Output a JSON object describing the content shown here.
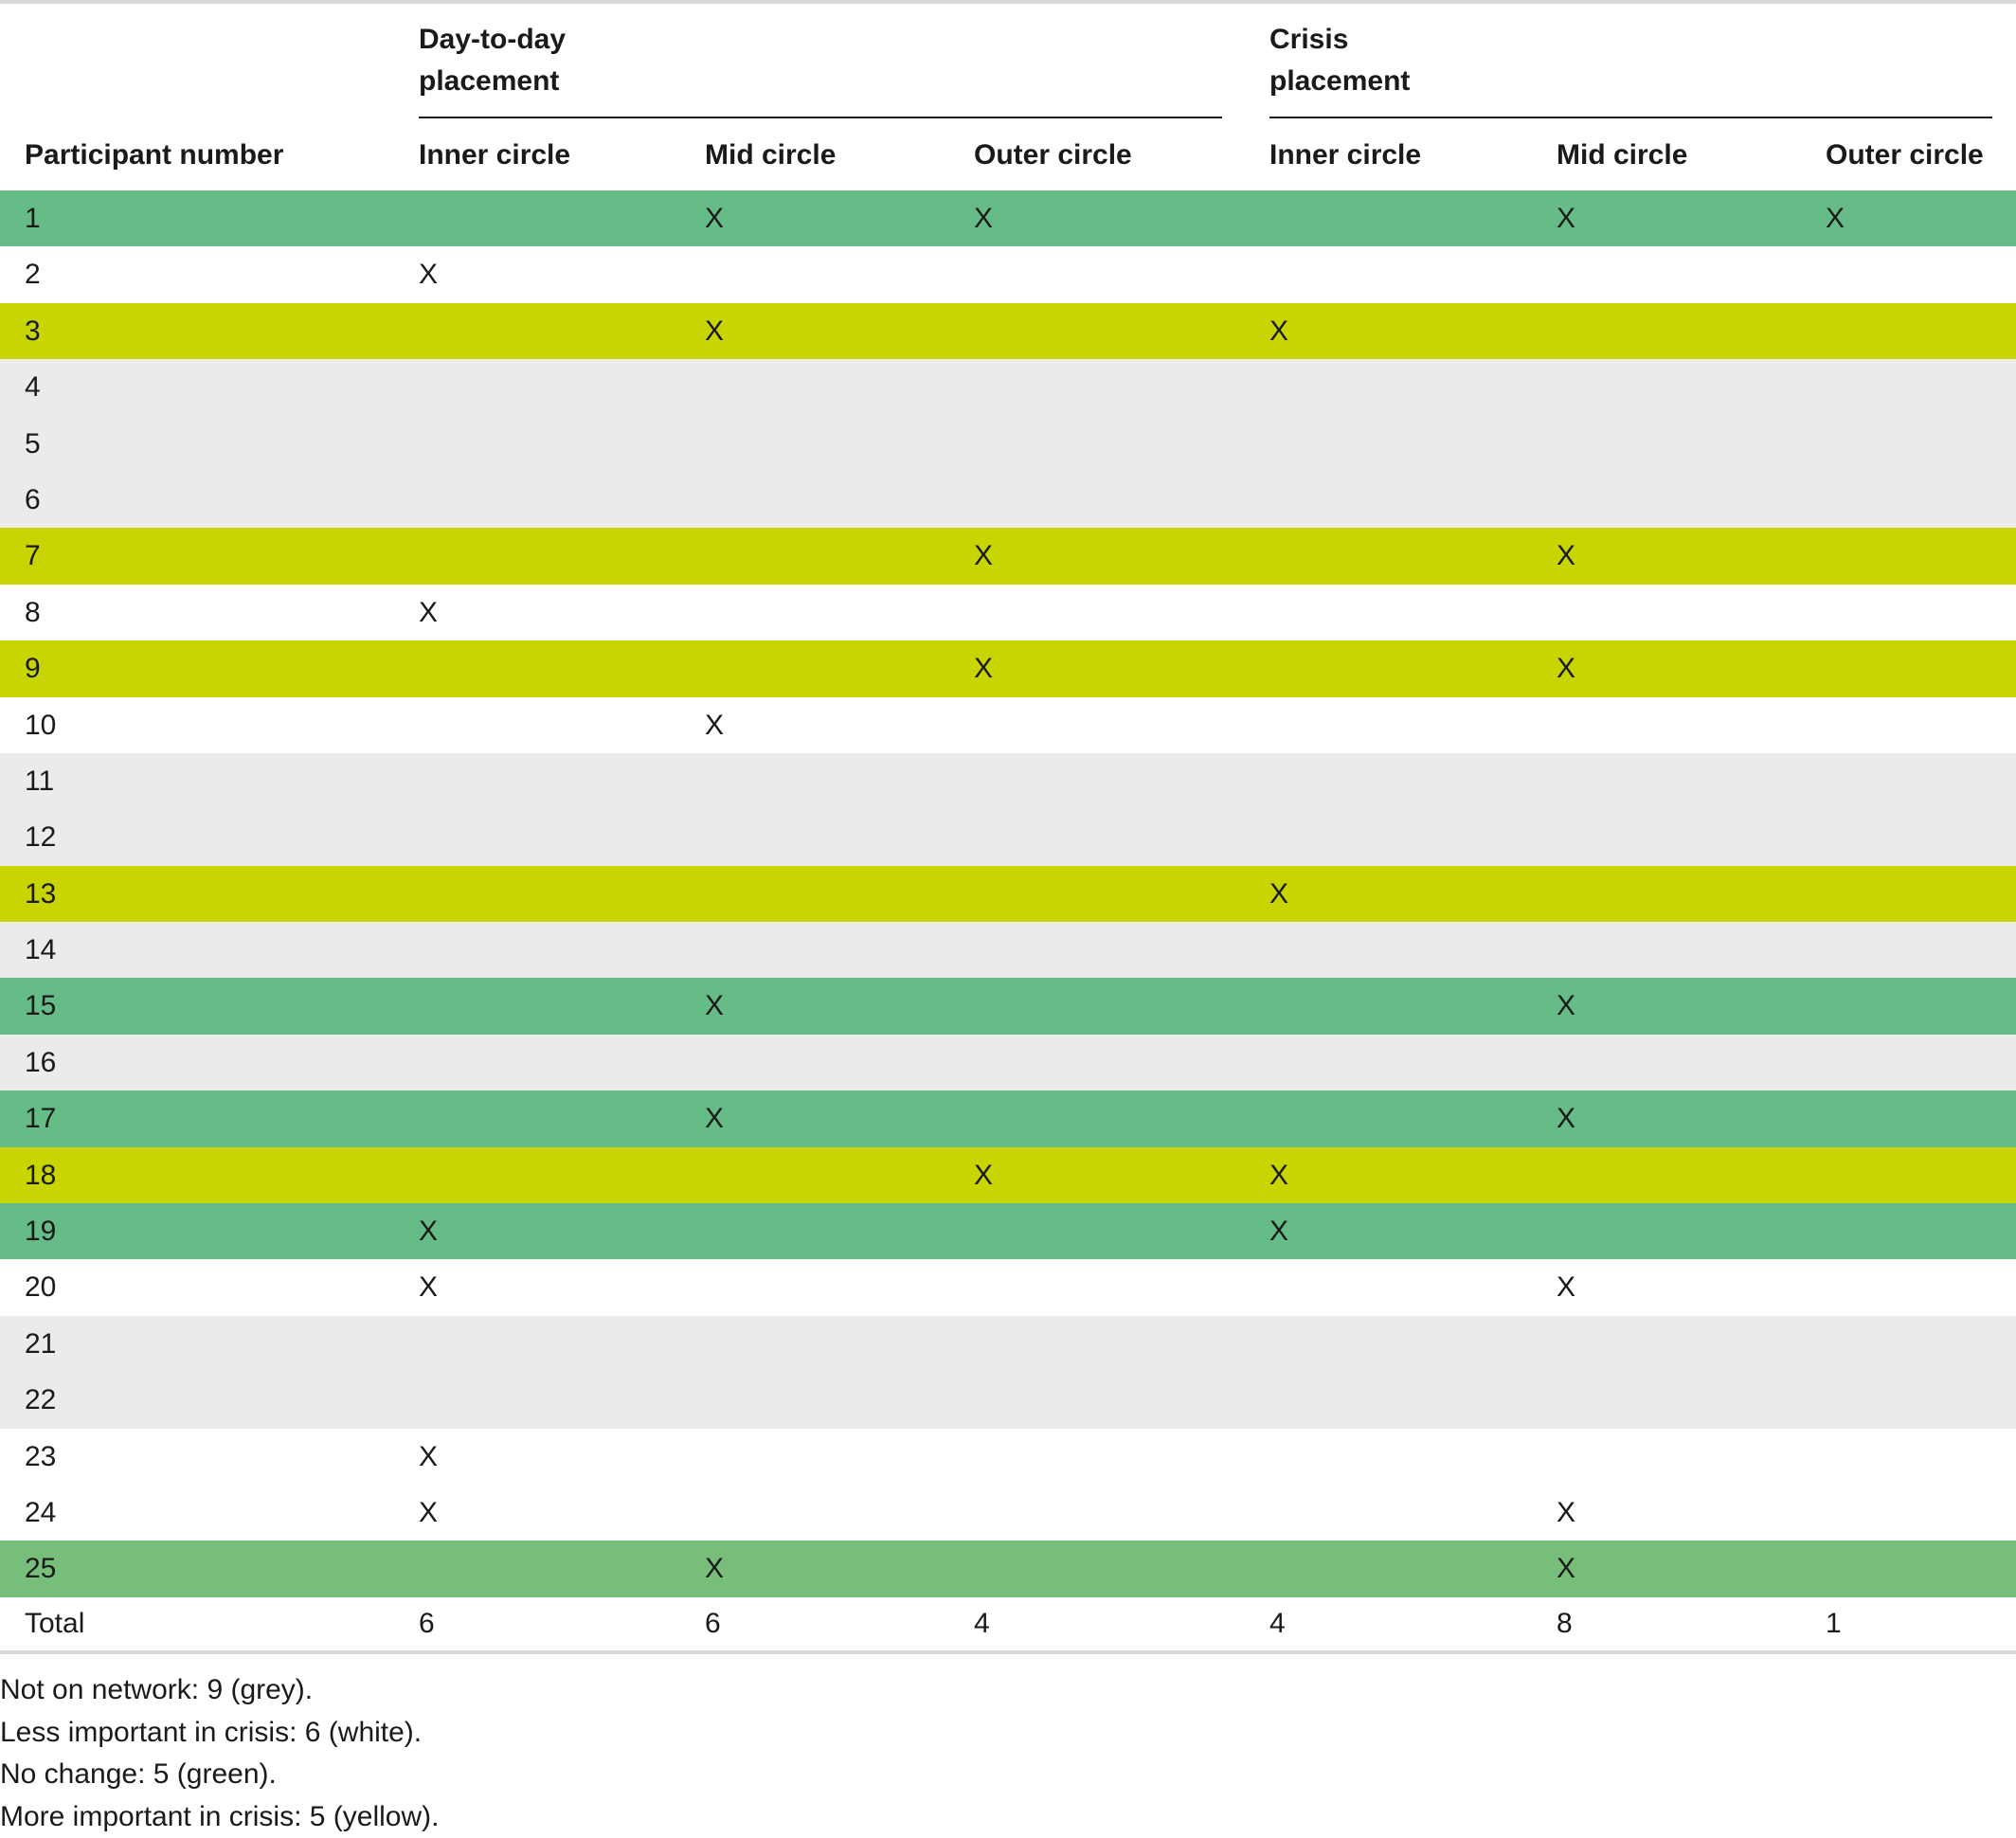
{
  "table": {
    "group_headers": {
      "day_to_day_line1": "Day-to-day",
      "day_to_day_line2": "placement",
      "crisis_line1": "Crisis",
      "crisis_line2": "placement"
    },
    "column_headers": [
      "Participant number",
      "Inner circle",
      "Mid circle",
      "Outer circle",
      "Inner circle",
      "Mid circle",
      "Outer circle"
    ],
    "row_colors": {
      "grey": "#ebebeb",
      "white": "#ffffff",
      "green": "#66bc87",
      "yellow": "#c9d500"
    },
    "rows": [
      {
        "participant": "1",
        "category": "green",
        "cells": [
          "",
          "X",
          "X",
          "",
          "X",
          "X"
        ]
      },
      {
        "participant": "2",
        "category": "white",
        "cells": [
          "X",
          "",
          "",
          "",
          "",
          ""
        ]
      },
      {
        "participant": "3",
        "category": "yellow",
        "cells": [
          "",
          "X",
          "",
          "X",
          "",
          ""
        ]
      },
      {
        "participant": "4",
        "category": "grey",
        "cells": [
          "",
          "",
          "",
          "",
          "",
          ""
        ]
      },
      {
        "participant": "5",
        "category": "grey",
        "cells": [
          "",
          "",
          "",
          "",
          "",
          ""
        ]
      },
      {
        "participant": "6",
        "category": "grey",
        "cells": [
          "",
          "",
          "",
          "",
          "",
          ""
        ]
      },
      {
        "participant": "7",
        "category": "yellow",
        "cells": [
          "",
          "",
          "X",
          "",
          "X",
          ""
        ]
      },
      {
        "participant": "8",
        "category": "white",
        "cells": [
          "X",
          "",
          "",
          "",
          "",
          ""
        ]
      },
      {
        "participant": "9",
        "category": "yellow",
        "cells": [
          "",
          "",
          "X",
          "",
          "X",
          ""
        ]
      },
      {
        "participant": "10",
        "category": "white",
        "cells": [
          "",
          "X",
          "",
          "",
          "",
          ""
        ]
      },
      {
        "participant": "11",
        "category": "grey",
        "cells": [
          "",
          "",
          "",
          "",
          "",
          ""
        ]
      },
      {
        "participant": "12",
        "category": "grey",
        "cells": [
          "",
          "",
          "",
          "",
          "",
          ""
        ]
      },
      {
        "participant": "13",
        "category": "yellow",
        "cells": [
          "",
          "",
          "",
          "X",
          "",
          ""
        ]
      },
      {
        "participant": "14",
        "category": "grey",
        "cells": [
          "",
          "",
          "",
          "",
          "",
          ""
        ]
      },
      {
        "participant": "15",
        "category": "green",
        "cells": [
          "",
          "X",
          "",
          "",
          "X",
          ""
        ]
      },
      {
        "participant": "16",
        "category": "grey",
        "cells": [
          "",
          "",
          "",
          "",
          "",
          ""
        ]
      },
      {
        "participant": "17",
        "category": "green",
        "cells": [
          "",
          "X",
          "",
          "",
          "X",
          ""
        ]
      },
      {
        "participant": "18",
        "category": "yellow",
        "cells": [
          "",
          "",
          "X",
          "X",
          "",
          ""
        ]
      },
      {
        "participant": "19",
        "category": "green",
        "cells": [
          "X",
          "",
          "",
          "X",
          "",
          ""
        ]
      },
      {
        "participant": "20",
        "category": "white",
        "cells": [
          "X",
          "",
          "",
          "",
          "X",
          ""
        ]
      },
      {
        "participant": "21",
        "category": "grey",
        "cells": [
          "",
          "",
          "",
          "",
          "",
          ""
        ]
      },
      {
        "participant": "22",
        "category": "grey",
        "cells": [
          "",
          "",
          "",
          "",
          "",
          ""
        ]
      },
      {
        "participant": "23",
        "category": "white",
        "cells": [
          "X",
          "",
          "",
          "",
          "",
          ""
        ]
      },
      {
        "participant": "24",
        "category": "white",
        "cells": [
          "X",
          "",
          "",
          "",
          "X",
          ""
        ]
      },
      {
        "participant": "25",
        "category": "green2",
        "cells": [
          "",
          "X",
          "",
          "",
          "X",
          ""
        ]
      }
    ],
    "total": {
      "label": "Total",
      "values": [
        "6",
        "6",
        "4",
        "4",
        "8",
        "1"
      ]
    }
  },
  "notes": [
    "Not on network: 9 (grey).",
    "Less important in crisis: 6 (white).",
    "No change: 5 (green).",
    "More important in crisis: 5 (yellow)."
  ]
}
